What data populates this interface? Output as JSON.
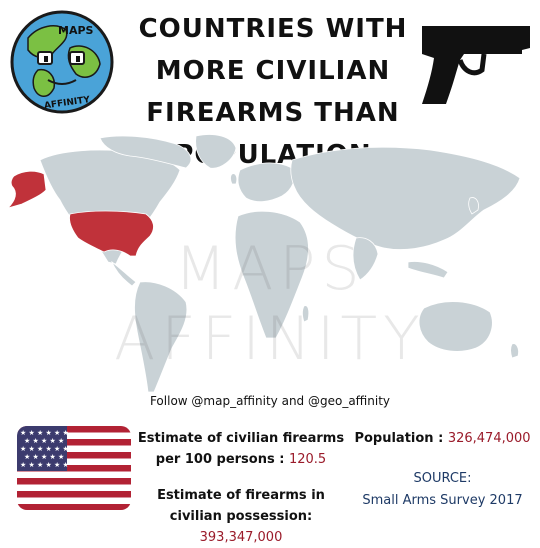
{
  "title": "COUNTRIES WITH MORE CIVILIAN FIREARMS THAN POPULATION",
  "logo": {
    "top_text": "MAPS",
    "bottom_text": "AFFINITY"
  },
  "watermark": "MAPS AFFINITY",
  "follow_text": "Follow @map_affinity and @geo_affinity",
  "stats": {
    "per100_label": "Estimate of civilian firearms per 100 persons :",
    "per100_value": "120.5",
    "possession_label": "Estimate of firearms in civilian possession:",
    "possession_value": "393,347,000",
    "population_label": "Population :",
    "population_value": "326,474,000"
  },
  "source": {
    "label": "SOURCE:",
    "value": "Small Arms Survey 2017"
  },
  "colors": {
    "land": "#c9d2d6",
    "highlight": "#c0323a",
    "value_text": "#9a1b2a",
    "source_text": "#1e3a66",
    "ocean": "#ffffff"
  },
  "highlighted_countries": [
    "United States"
  ],
  "icons": [
    "globe-logo-icon",
    "handgun-icon",
    "us-flag-icon"
  ]
}
